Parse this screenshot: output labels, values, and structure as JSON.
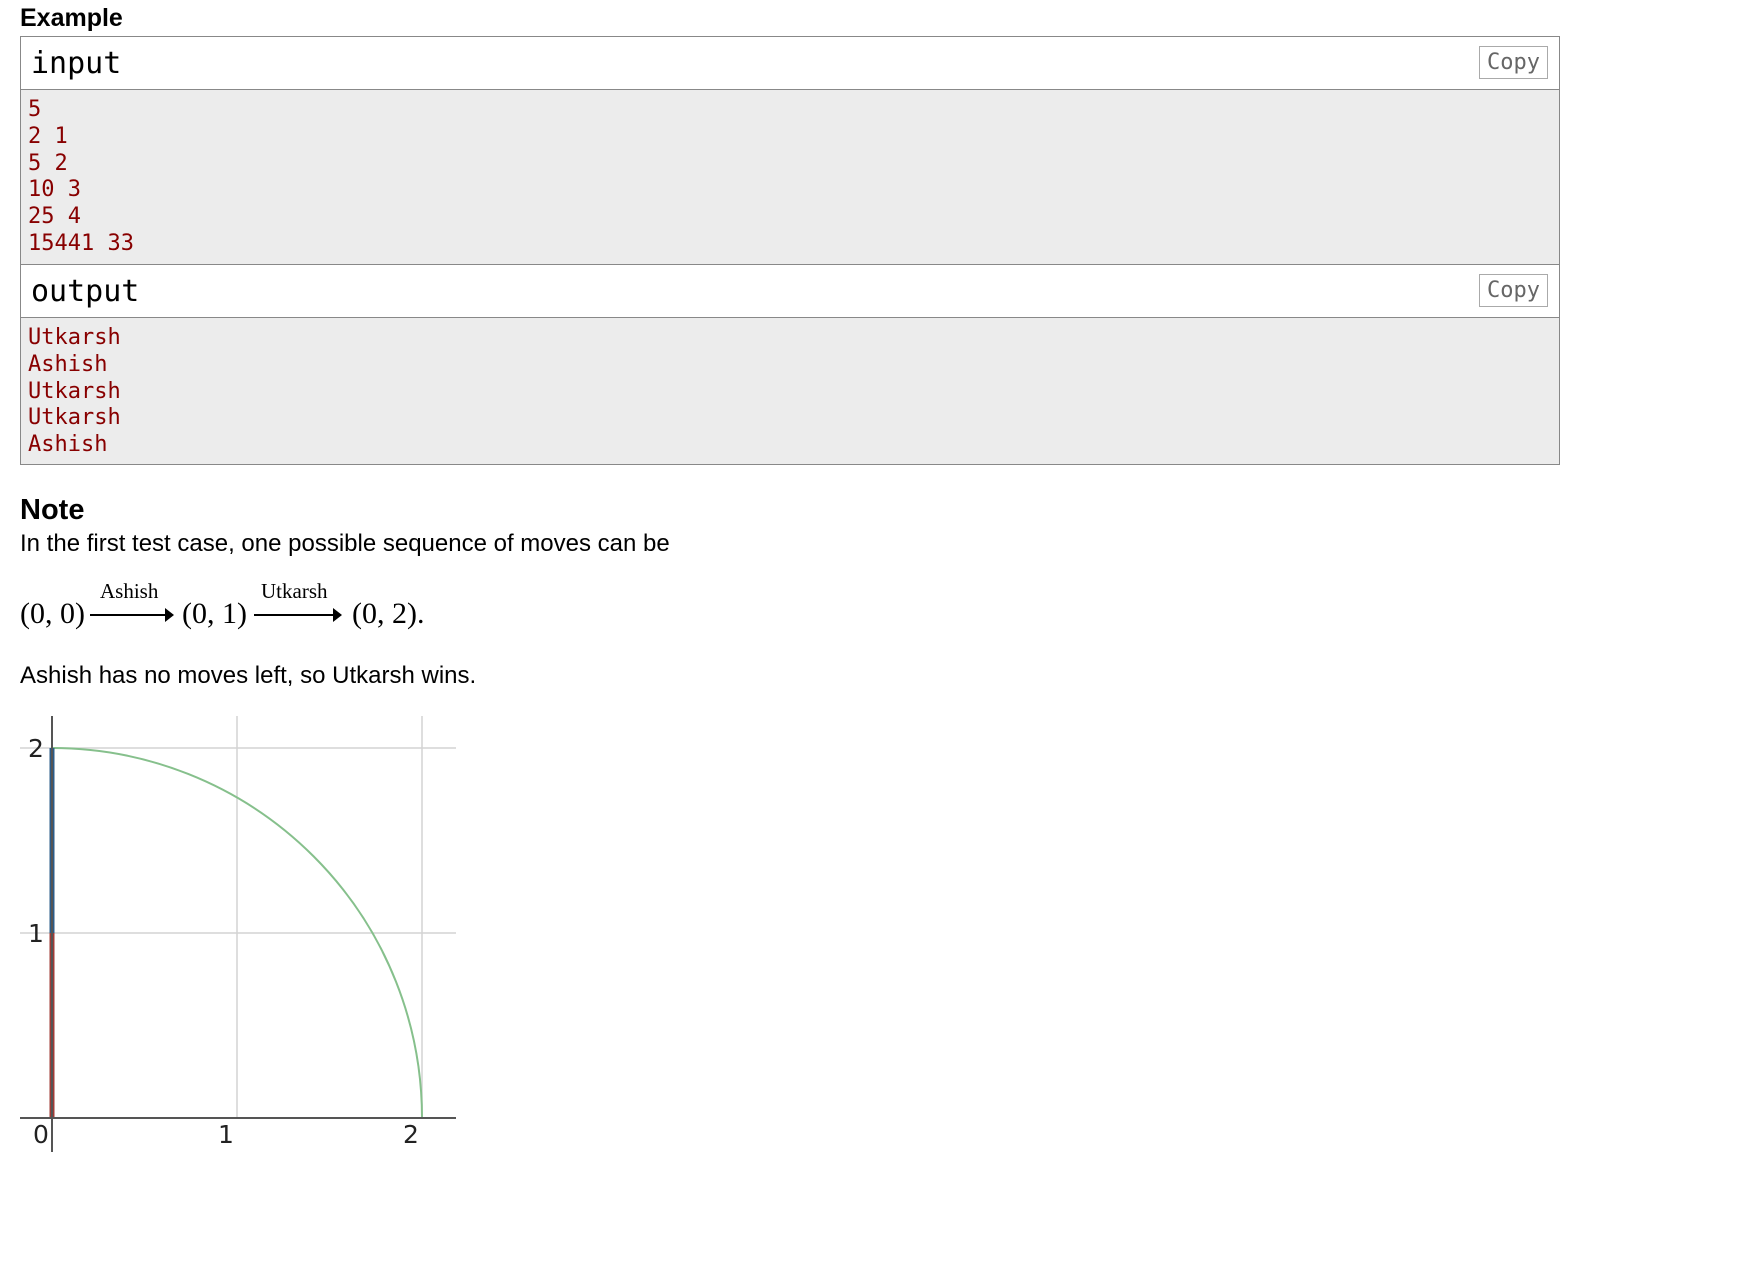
{
  "example": {
    "title": "Example",
    "input": {
      "label": "input",
      "copy_label": "Copy",
      "lines": [
        "5",
        "2 1",
        "5 2",
        "10 3",
        "25 4",
        "15441 33"
      ]
    },
    "output": {
      "label": "output",
      "copy_label": "Copy",
      "lines": [
        "Utkarsh",
        "Ashish",
        "Utkarsh",
        "Utkarsh",
        "Ashish"
      ]
    }
  },
  "note": {
    "title": "Note",
    "intro": "In the first test case, one possible sequence of moves can be",
    "formula": {
      "p0": "(0, 0)",
      "a1": "Ashish",
      "p1": "(0, 1)",
      "a2": "Utkarsh",
      "p2": "(0, 2)."
    },
    "conclusion": "Ashish has no moves left, so Utkarsh wins."
  },
  "figure": {
    "x_ticks": [
      "0",
      "1",
      "2"
    ],
    "y_ticks": [
      "1",
      "2"
    ],
    "colors": {
      "circle": "#86c08c",
      "first_move": "#a23b36",
      "second_move": "#2b5c8a",
      "grid": "#d4d4d4",
      "axis": "#555555"
    }
  }
}
